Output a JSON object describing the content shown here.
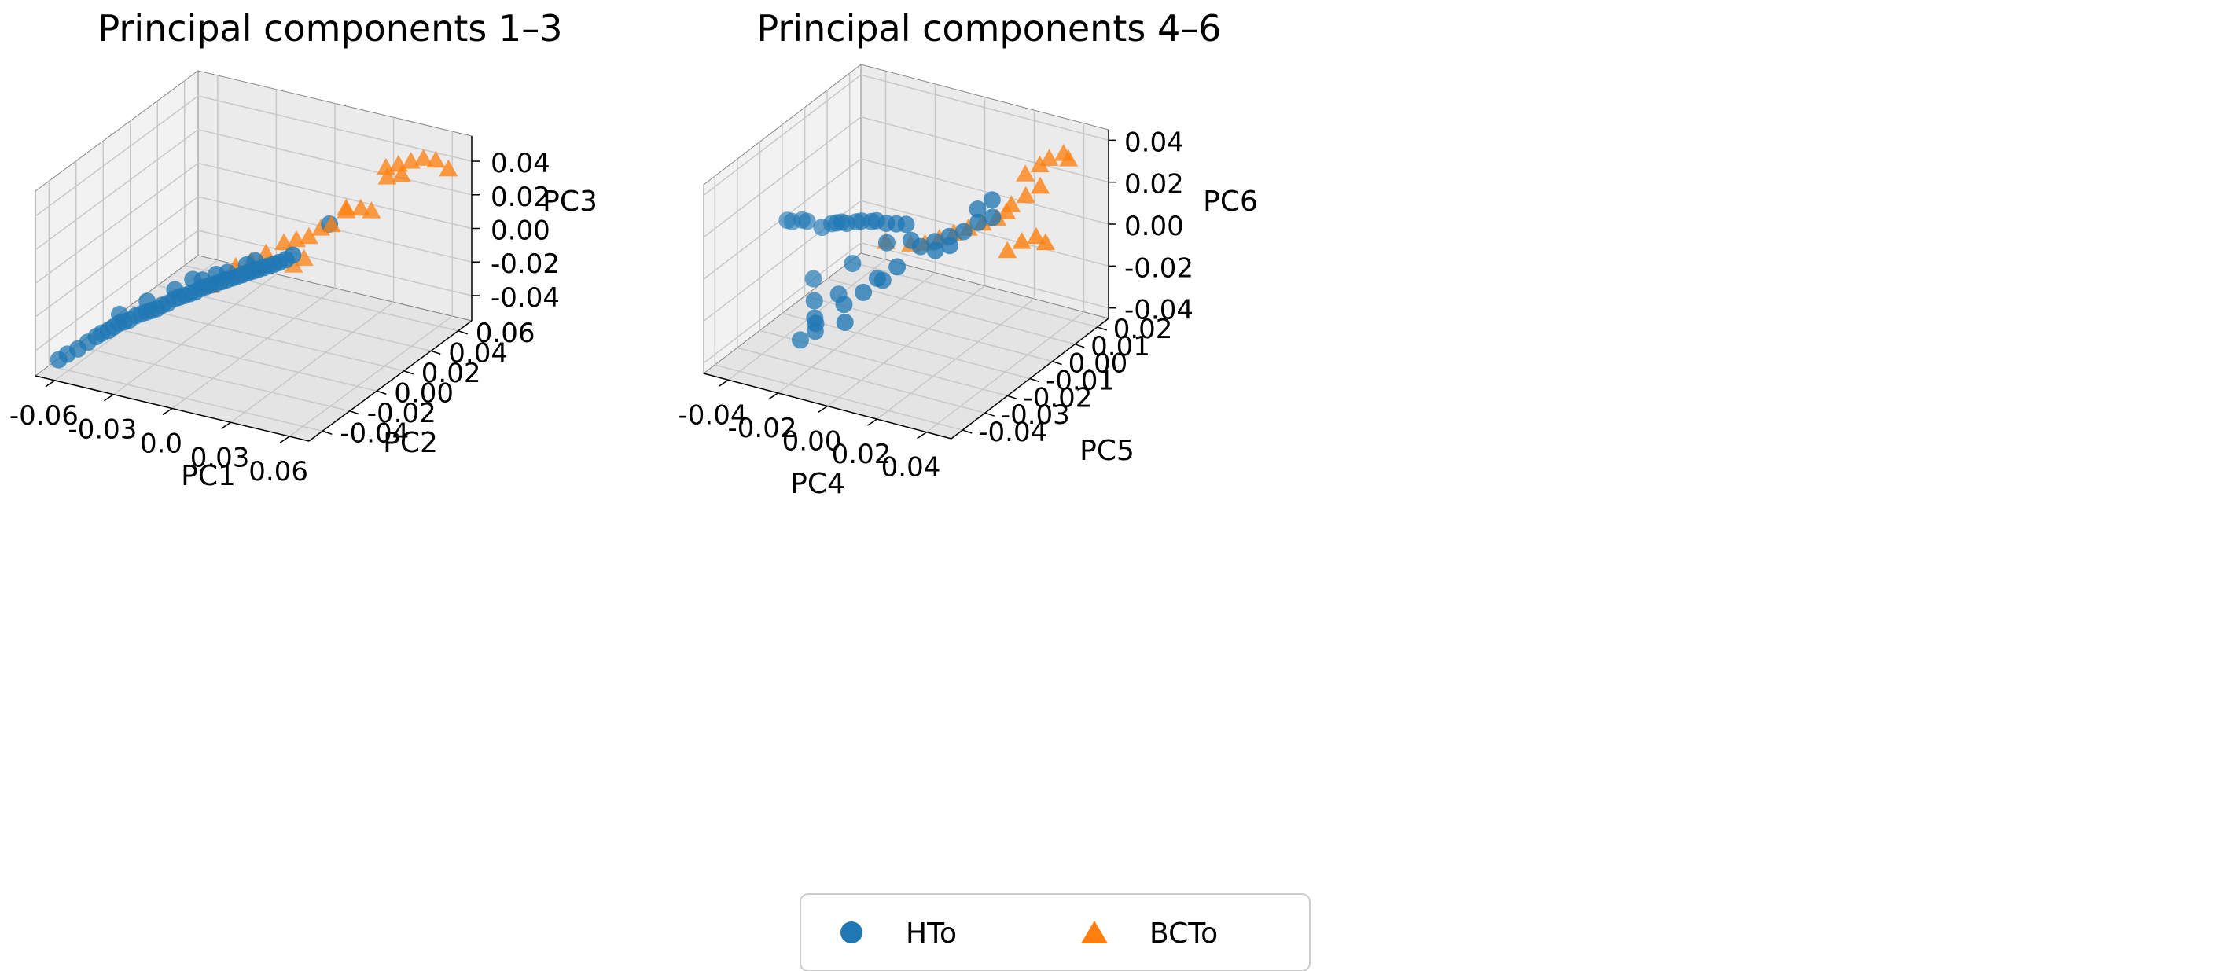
{
  "colors": {
    "hto": "#1f77b4",
    "bcto": "#ff7f0e",
    "pane_left": "#f2f2f2",
    "pane_right": "#ebebeb",
    "pane_floor": "#e4e4e4",
    "grid": "#c8c8c8",
    "edge": "#888888"
  },
  "legend": {
    "items": [
      {
        "label": "HTo",
        "marker": "circle",
        "color": "#1f77b4"
      },
      {
        "label": "BCTo",
        "marker": "triangle",
        "color": "#ff7f0e"
      }
    ]
  },
  "chart_data": [
    {
      "type": "scatter",
      "projection": "3d",
      "title": "Principal components 1–3",
      "xlabel": "PC1",
      "ylabel": "PC2",
      "zlabel": "PC3",
      "xlim": [
        -0.07,
        0.07
      ],
      "ylim": [
        -0.05,
        0.07
      ],
      "zlim": [
        -0.055,
        0.055
      ],
      "xticks": [
        "-0.06",
        "-0.03",
        "0.0",
        "0.03",
        "0.06"
      ],
      "xtick_values": [
        -0.06,
        -0.03,
        0.0,
        0.03,
        0.06
      ],
      "yticks": [
        "-0.04",
        "-0.02",
        "0.00",
        "0.02",
        "0.04",
        "0.06"
      ],
      "ytick_values": [
        -0.04,
        -0.02,
        0.0,
        0.02,
        0.04,
        0.06
      ],
      "zticks": [
        "-0.04",
        "-0.02",
        "0.00",
        "0.02",
        "0.04"
      ],
      "ztick_values": [
        -0.04,
        -0.02,
        0.0,
        0.02,
        0.04
      ],
      "grid": true,
      "series": [
        {
          "name": "HTo",
          "marker": "circle",
          "points": [
            [
              -0.065,
              -0.04,
              -0.05
            ],
            [
              -0.062,
              -0.038,
              -0.047
            ],
            [
              -0.058,
              -0.036,
              -0.044
            ],
            [
              -0.055,
              -0.033,
              -0.041
            ],
            [
              -0.052,
              -0.031,
              -0.038
            ],
            [
              -0.05,
              -0.03,
              -0.036
            ],
            [
              -0.048,
              -0.028,
              -0.035
            ],
            [
              -0.046,
              -0.027,
              -0.033
            ],
            [
              -0.044,
              -0.026,
              -0.031
            ],
            [
              -0.042,
              -0.025,
              -0.03
            ],
            [
              -0.04,
              -0.024,
              -0.029
            ],
            [
              -0.038,
              -0.022,
              -0.027
            ],
            [
              -0.036,
              -0.021,
              -0.026
            ],
            [
              -0.034,
              -0.02,
              -0.025
            ],
            [
              -0.032,
              -0.019,
              -0.024
            ],
            [
              -0.03,
              -0.018,
              -0.023
            ],
            [
              -0.028,
              -0.017,
              -0.021
            ],
            [
              -0.026,
              -0.016,
              -0.02
            ],
            [
              -0.024,
              -0.014,
              -0.018
            ],
            [
              -0.022,
              -0.013,
              -0.017
            ],
            [
              -0.02,
              -0.012,
              -0.016
            ],
            [
              -0.018,
              -0.011,
              -0.015
            ],
            [
              -0.016,
              -0.01,
              -0.014
            ],
            [
              -0.014,
              -0.009,
              -0.012
            ],
            [
              -0.012,
              -0.008,
              -0.011
            ],
            [
              -0.01,
              -0.007,
              -0.01
            ],
            [
              -0.008,
              -0.006,
              -0.009
            ],
            [
              -0.006,
              -0.005,
              -0.008
            ],
            [
              -0.004,
              -0.004,
              -0.007
            ],
            [
              -0.002,
              -0.003,
              -0.006
            ],
            [
              0.0,
              -0.002,
              -0.005
            ],
            [
              0.002,
              -0.001,
              -0.004
            ],
            [
              0.004,
              0.0,
              -0.003
            ],
            [
              0.006,
              0.001,
              -0.002
            ],
            [
              0.008,
              0.002,
              -0.001
            ],
            [
              0.01,
              0.003,
              0.0
            ],
            [
              0.012,
              0.004,
              0.001
            ],
            [
              0.014,
              0.005,
              0.002
            ],
            [
              0.016,
              0.006,
              0.003
            ],
            [
              -0.025,
              -0.012,
              -0.014
            ],
            [
              -0.015,
              -0.006,
              -0.009
            ],
            [
              -0.005,
              -0.002,
              -0.004
            ],
            [
              -0.035,
              -0.018,
              -0.02
            ],
            [
              -0.045,
              -0.024,
              -0.027
            ],
            [
              0.005,
              0.004,
              0.002
            ],
            [
              0.018,
              0.008,
              0.004
            ],
            [
              0.02,
              0.01,
              0.006
            ],
            [
              -0.02,
              -0.006,
              -0.01
            ],
            [
              -0.01,
              -0.003,
              -0.006
            ],
            [
              0.002,
              0.002,
              0.0
            ],
            [
              0.025,
              0.03,
              0.014
            ]
          ]
        },
        {
          "name": "BCTo",
          "marker": "triangle",
          "points": [
            [
              0.04,
              0.05,
              0.04
            ],
            [
              0.045,
              0.052,
              0.042
            ],
            [
              0.05,
              0.054,
              0.044
            ],
            [
              0.055,
              0.056,
              0.046
            ],
            [
              0.06,
              0.058,
              0.045
            ],
            [
              0.042,
              0.048,
              0.036
            ],
            [
              0.048,
              0.05,
              0.038
            ],
            [
              0.065,
              0.06,
              0.04
            ],
            [
              0.03,
              0.035,
              0.022
            ],
            [
              0.034,
              0.04,
              0.02
            ],
            [
              0.028,
              0.038,
              0.018
            ],
            [
              0.036,
              0.045,
              0.016
            ],
            [
              0.015,
              0.02,
              0.008
            ],
            [
              0.01,
              0.018,
              0.006
            ],
            [
              0.02,
              0.022,
              0.01
            ],
            [
              0.005,
              0.012,
              0.002
            ],
            [
              0.0,
              0.008,
              -0.002
            ],
            [
              -0.005,
              0.004,
              -0.004
            ],
            [
              0.012,
              0.03,
              -0.01
            ],
            [
              0.008,
              0.028,
              -0.014
            ],
            [
              -0.012,
              -0.005,
              -0.012
            ],
            [
              0.022,
              0.028,
              0.012
            ],
            [
              0.026,
              0.03,
              0.014
            ]
          ]
        }
      ]
    },
    {
      "type": "scatter",
      "projection": "3d",
      "title": "Principal components 4–6",
      "xlabel": "PC4",
      "ylabel": "PC5",
      "zlabel": "PC6",
      "xlim": [
        -0.05,
        0.05
      ],
      "ylim": [
        -0.045,
        0.025
      ],
      "zlim": [
        -0.045,
        0.045
      ],
      "xticks": [
        "-0.04",
        "-0.02",
        "0.00",
        "0.02",
        "0.04"
      ],
      "xtick_values": [
        -0.04,
        -0.02,
        0.0,
        0.02,
        0.04
      ],
      "yticks": [
        "-0.04",
        "-0.03",
        "-0.02",
        "-0.01",
        "0.00",
        "0.01",
        "0.02"
      ],
      "ytick_values": [
        -0.04,
        -0.03,
        -0.02,
        -0.01,
        0.0,
        0.01,
        0.02
      ],
      "zticks": [
        "-0.04",
        "-0.02",
        "0.00",
        "0.02",
        "0.04"
      ],
      "ztick_values": [
        -0.04,
        -0.02,
        0.0,
        0.02,
        0.04
      ],
      "grid": true,
      "series": [
        {
          "name": "HTo",
          "marker": "circle",
          "points": [
            [
              -0.048,
              -0.01,
              0.0
            ],
            [
              -0.046,
              -0.01,
              0.0
            ],
            [
              -0.042,
              -0.01,
              0.002
            ],
            [
              -0.04,
              -0.01,
              0.002
            ],
            [
              -0.034,
              -0.01,
              0.001
            ],
            [
              -0.03,
              -0.01,
              0.004
            ],
            [
              -0.028,
              -0.01,
              0.005
            ],
            [
              -0.026,
              -0.01,
              0.006
            ],
            [
              -0.024,
              -0.01,
              0.006
            ],
            [
              -0.02,
              -0.01,
              0.008
            ],
            [
              -0.018,
              -0.01,
              0.009
            ],
            [
              -0.014,
              -0.01,
              0.01
            ],
            [
              -0.012,
              -0.01,
              0.011
            ],
            [
              -0.008,
              -0.01,
              0.011
            ],
            [
              -0.004,
              -0.01,
              0.012
            ],
            [
              0.0,
              -0.01,
              0.013
            ],
            [
              -0.032,
              -0.016,
              -0.018
            ],
            [
              -0.028,
              -0.02,
              -0.024
            ],
            [
              -0.026,
              -0.022,
              -0.03
            ],
            [
              -0.024,
              -0.024,
              -0.034
            ],
            [
              -0.03,
              -0.024,
              -0.04
            ],
            [
              -0.022,
              -0.026,
              -0.028
            ],
            [
              -0.02,
              -0.018,
              -0.02
            ],
            [
              -0.016,
              -0.02,
              -0.022
            ],
            [
              -0.012,
              -0.024,
              -0.026
            ],
            [
              -0.008,
              -0.014,
              -0.012
            ],
            [
              -0.004,
              -0.016,
              -0.01
            ],
            [
              0.0,
              -0.014,
              -0.004
            ],
            [
              0.004,
              -0.008,
              0.002
            ],
            [
              0.008,
              -0.006,
              0.004
            ],
            [
              0.012,
              -0.004,
              0.006
            ],
            [
              0.016,
              -0.002,
              0.008
            ],
            [
              0.02,
              0.0,
              0.012
            ],
            [
              0.024,
              0.002,
              0.014
            ],
            [
              0.01,
              -0.008,
              0.002
            ],
            [
              0.014,
              -0.006,
              0.004
            ],
            [
              0.002,
              -0.01,
              0.006
            ],
            [
              -0.006,
              -0.012,
              0.004
            ],
            [
              0.018,
              0.002,
              0.016
            ],
            [
              0.022,
              0.004,
              0.02
            ],
            [
              -0.018,
              -0.014,
              -0.008
            ],
            [
              -0.01,
              -0.018,
              -0.016
            ]
          ]
        },
        {
          "name": "BCTo",
          "marker": "triangle",
          "points": [
            [
              0.03,
              0.01,
              0.03
            ],
            [
              0.034,
              0.012,
              0.034
            ],
            [
              0.036,
              0.014,
              0.036
            ],
            [
              0.04,
              0.016,
              0.038
            ],
            [
              0.042,
              0.016,
              0.036
            ],
            [
              0.032,
              0.008,
              0.022
            ],
            [
              0.036,
              0.01,
              0.026
            ],
            [
              0.028,
              0.006,
              0.018
            ],
            [
              0.026,
              0.006,
              0.014
            ],
            [
              0.024,
              0.004,
              0.012
            ],
            [
              0.02,
              0.002,
              0.01
            ],
            [
              0.016,
              0.0,
              0.008
            ],
            [
              0.012,
              -0.002,
              0.006
            ],
            [
              0.008,
              -0.004,
              0.004
            ],
            [
              0.004,
              -0.006,
              0.002
            ],
            [
              0.0,
              -0.008,
              0.002
            ],
            [
              -0.01,
              -0.008,
              0.0
            ],
            [
              0.034,
              0.004,
              0.004
            ],
            [
              0.038,
              0.006,
              0.006
            ],
            [
              0.04,
              0.008,
              0.002
            ],
            [
              0.03,
              0.002,
              0.0
            ]
          ]
        }
      ]
    }
  ]
}
